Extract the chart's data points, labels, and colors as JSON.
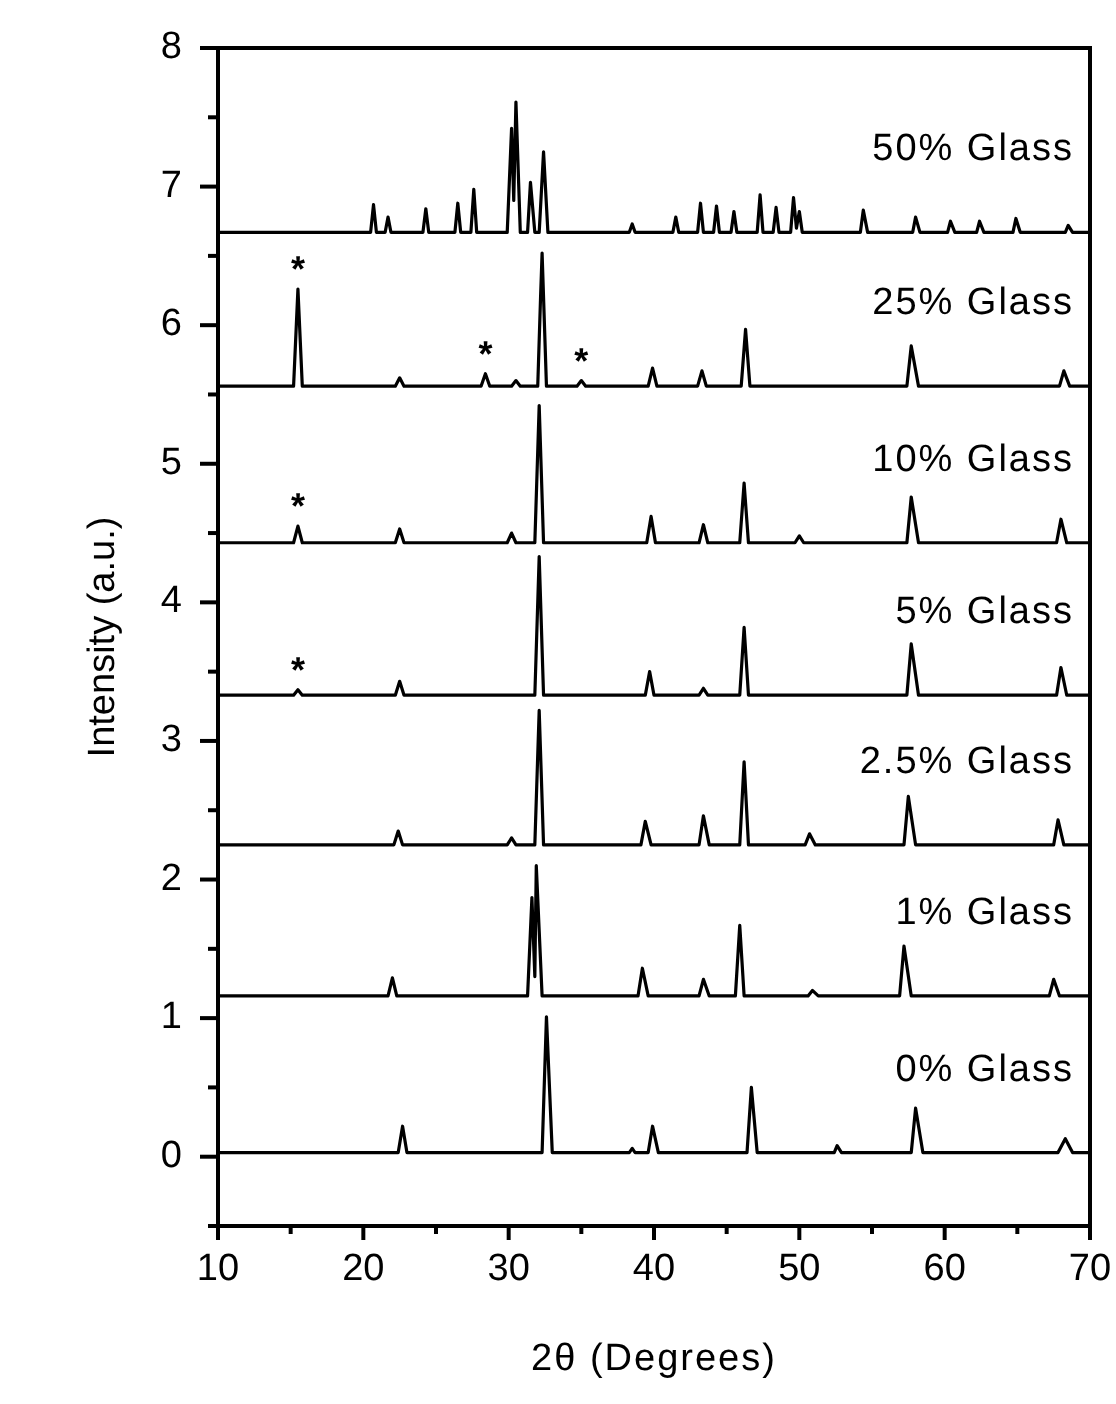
{
  "chart_data": {
    "type": "line",
    "xlabel": "2θ (Degrees)",
    "ylabel": "Intensity (a.u.)",
    "xlim": [
      10,
      70
    ],
    "ylim": [
      -0.5,
      8
    ],
    "xticks": [
      10,
      {
        "value": 15,
        "label": null
      },
      20,
      {
        "value": 25,
        "label": null
      },
      30,
      {
        "value": 35,
        "label": null
      },
      40,
      {
        "value": 45,
        "label": null
      },
      50,
      {
        "value": 55,
        "label": null
      },
      60,
      {
        "value": 65,
        "label": null
      },
      70
    ],
    "yticks": [
      {
        "value": -0.5,
        "label": null
      },
      0,
      {
        "value": 0.5,
        "label": null
      },
      1,
      {
        "value": 1.5,
        "label": null
      },
      2,
      {
        "value": 2.5,
        "label": null
      },
      3,
      {
        "value": 3.5,
        "label": null
      },
      4,
      {
        "value": 4.5,
        "label": null
      },
      5,
      {
        "value": 5.5,
        "label": null
      },
      6,
      {
        "value": 6.5,
        "label": null
      },
      7,
      {
        "value": 7.5,
        "label": null
      },
      8
    ],
    "series": [
      {
        "name": "0% Glass",
        "color": "#000000",
        "x": [
          10,
          22.4,
          22.7,
          23.0,
          32.3,
          32.6,
          33.0,
          38.3,
          38.5,
          38.7,
          39.6,
          39.9,
          40.3,
          46.4,
          46.7,
          47.1,
          52.4,
          52.6,
          52.9,
          57.7,
          58.0,
          58.5,
          67.8,
          68.3,
          68.8,
          70
        ],
        "values": [
          0.03,
          0.03,
          0.22,
          0.03,
          0.03,
          1.01,
          0.03,
          0.03,
          0.06,
          0.03,
          0.03,
          0.22,
          0.03,
          0.03,
          0.5,
          0.03,
          0.03,
          0.08,
          0.03,
          0.03,
          0.35,
          0.03,
          0.03,
          0.13,
          0.03,
          0.03
        ]
      },
      {
        "name": "1% Glass",
        "color": "#000000",
        "x": [
          10,
          21.7,
          22.0,
          22.3,
          31.3,
          31.6,
          31.8,
          31.9,
          32.3,
          38.9,
          39.2,
          39.6,
          43.1,
          43.4,
          43.8,
          45.6,
          45.9,
          46.2,
          50.6,
          50.9,
          51.3,
          56.9,
          57.2,
          57.7,
          67.2,
          67.5,
          67.9,
          70
        ],
        "values": [
          1.16,
          1.16,
          1.29,
          1.16,
          1.16,
          1.87,
          1.3,
          2.1,
          1.16,
          1.16,
          1.36,
          1.16,
          1.16,
          1.28,
          1.16,
          1.16,
          1.67,
          1.16,
          1.16,
          1.2,
          1.16,
          1.16,
          1.52,
          1.16,
          1.16,
          1.28,
          1.16,
          1.16
        ]
      },
      {
        "name": "2.5% Glass",
        "color": "#000000",
        "x": [
          10,
          22.1,
          22.4,
          22.7,
          29.9,
          30.2,
          30.5,
          31.8,
          32.1,
          32.4,
          39.1,
          39.4,
          39.8,
          43.1,
          43.4,
          43.8,
          45.9,
          46.2,
          46.5,
          50.4,
          50.7,
          51.1,
          57.2,
          57.5,
          58.0,
          67.5,
          67.8,
          68.2,
          70
        ],
        "values": [
          2.25,
          2.25,
          2.35,
          2.25,
          2.25,
          2.3,
          2.25,
          2.25,
          3.22,
          2.25,
          2.25,
          2.42,
          2.25,
          2.25,
          2.46,
          2.25,
          2.25,
          2.85,
          2.25,
          2.25,
          2.33,
          2.25,
          2.25,
          2.6,
          2.25,
          2.25,
          2.43,
          2.25,
          2.25
        ]
      },
      {
        "name": "5% Glass",
        "color": "#000000",
        "x": [
          10,
          15.2,
          15.5,
          15.8,
          22.2,
          22.5,
          22.8,
          31.8,
          32.1,
          32.4,
          39.4,
          39.7,
          40.0,
          43.1,
          43.4,
          43.7,
          45.9,
          46.2,
          46.5,
          57.4,
          57.7,
          58.2,
          67.7,
          68.0,
          68.4,
          70
        ],
        "values": [
          3.33,
          3.33,
          3.37,
          3.33,
          3.33,
          3.43,
          3.33,
          3.33,
          4.33,
          3.33,
          3.33,
          3.5,
          3.33,
          3.33,
          3.38,
          3.33,
          3.33,
          3.82,
          3.33,
          3.33,
          3.7,
          3.33,
          3.33,
          3.53,
          3.33,
          3.33
        ]
      },
      {
        "name": "10% Glass",
        "color": "#000000",
        "x": [
          10,
          15.2,
          15.5,
          15.8,
          22.2,
          22.5,
          22.8,
          29.9,
          30.2,
          30.5,
          31.8,
          32.1,
          32.4,
          39.5,
          39.8,
          40.1,
          43.1,
          43.4,
          43.7,
          45.9,
          46.2,
          46.5,
          49.7,
          50.0,
          50.3,
          57.4,
          57.7,
          58.2,
          67.7,
          68.0,
          68.4,
          70
        ],
        "values": [
          4.43,
          4.43,
          4.55,
          4.43,
          4.43,
          4.53,
          4.43,
          4.43,
          4.5,
          4.43,
          4.43,
          5.42,
          4.43,
          4.43,
          4.62,
          4.43,
          4.43,
          4.56,
          4.43,
          4.43,
          4.86,
          4.43,
          4.43,
          4.48,
          4.43,
          4.43,
          4.76,
          4.43,
          4.43,
          4.6,
          4.43,
          4.43
        ]
      },
      {
        "name": "25% Glass",
        "color": "#000000",
        "x": [
          10,
          15.2,
          15.5,
          15.8,
          22.2,
          22.5,
          22.8,
          28.1,
          28.4,
          28.7,
          30.2,
          30.5,
          30.8,
          32.0,
          32.2,
          32.3,
          32.6,
          34.7,
          35.0,
          35.3,
          39.6,
          39.9,
          40.2,
          43.0,
          43.3,
          43.6,
          46.0,
          46.3,
          46.6,
          57.4,
          57.7,
          58.2,
          67.9,
          68.2,
          68.6,
          70
        ],
        "values": [
          5.56,
          5.56,
          6.26,
          5.56,
          5.56,
          5.62,
          5.56,
          5.56,
          5.65,
          5.56,
          5.56,
          5.6,
          5.56,
          5.56,
          6.22,
          6.52,
          5.56,
          5.56,
          5.6,
          5.56,
          5.56,
          5.69,
          5.56,
          5.56,
          5.67,
          5.56,
          5.56,
          5.97,
          5.56,
          5.56,
          5.85,
          5.56,
          5.56,
          5.67,
          5.56,
          5.56
        ]
      },
      {
        "name": "50% Glass",
        "color": "#000000",
        "x": [
          10,
          20.5,
          20.7,
          20.9,
          21.5,
          21.7,
          21.9,
          24.1,
          24.3,
          24.5,
          26.3,
          26.5,
          26.7,
          27.4,
          27.6,
          27.8,
          29.9,
          30.2,
          30.35,
          30.5,
          30.8,
          31.3,
          31.5,
          31.8,
          32.1,
          32.4,
          32.7,
          38.3,
          38.5,
          38.7,
          41.3,
          41.5,
          41.7,
          43.0,
          43.2,
          43.4,
          44.1,
          44.3,
          44.5,
          45.3,
          45.5,
          45.7,
          47.1,
          47.3,
          47.5,
          48.2,
          48.4,
          48.6,
          49.4,
          49.6,
          49.8,
          50.0,
          50.2,
          54.2,
          54.4,
          54.7,
          57.8,
          58.0,
          58.3,
          60.2,
          60.4,
          60.7,
          62.2,
          62.4,
          62.7,
          64.7,
          64.9,
          65.2,
          68.3,
          68.5,
          68.8,
          70
        ],
        "values": [
          6.67,
          6.67,
          6.87,
          6.67,
          6.67,
          6.78,
          6.67,
          6.67,
          6.84,
          6.67,
          6.67,
          6.88,
          6.67,
          6.67,
          6.98,
          6.67,
          6.67,
          7.42,
          6.9,
          7.61,
          6.67,
          6.67,
          7.03,
          6.67,
          6.67,
          7.25,
          6.67,
          6.67,
          6.73,
          6.67,
          6.67,
          6.78,
          6.67,
          6.67,
          6.88,
          6.67,
          6.67,
          6.86,
          6.67,
          6.67,
          6.82,
          6.67,
          6.67,
          6.94,
          6.67,
          6.67,
          6.85,
          6.67,
          6.67,
          6.92,
          6.7,
          6.82,
          6.67,
          6.67,
          6.83,
          6.67,
          6.67,
          6.78,
          6.67,
          6.67,
          6.75,
          6.67,
          6.67,
          6.75,
          6.67,
          6.67,
          6.77,
          6.67,
          6.67,
          6.72,
          6.67,
          6.67
        ]
      }
    ],
    "annotations": [
      {
        "text": "*",
        "x": 15.5,
        "y": 6.26
      },
      {
        "text": "*",
        "x": 28.4,
        "y": 5.65
      },
      {
        "text": "*",
        "x": 35.0,
        "y": 5.6
      },
      {
        "text": "*",
        "x": 15.5,
        "y": 4.55
      },
      {
        "text": "*",
        "x": 15.5,
        "y": 3.37
      }
    ]
  }
}
